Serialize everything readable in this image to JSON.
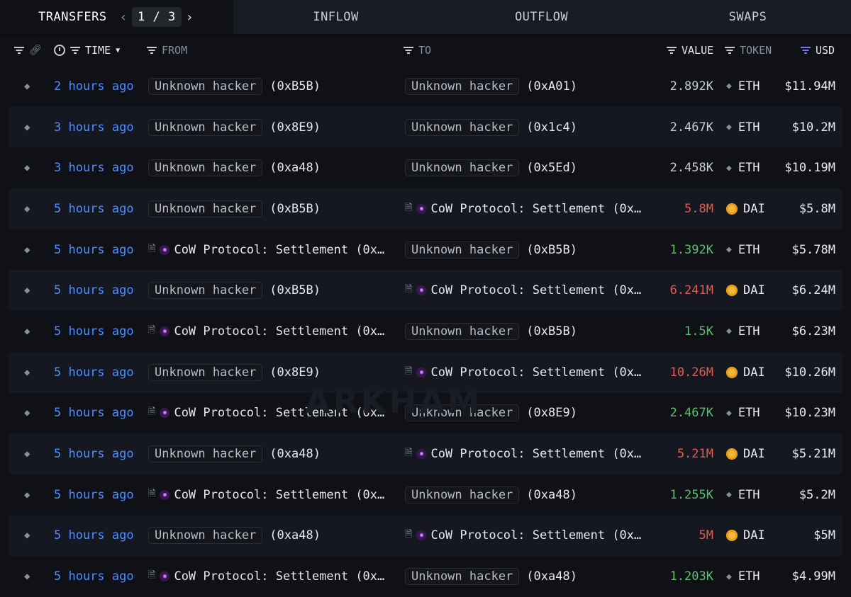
{
  "tabs": {
    "transfers": "TRANSFERS",
    "page_current": "1",
    "page_sep": "/",
    "page_total": "3",
    "inflow": "INFLOW",
    "outflow": "OUTFLOW",
    "swaps": "SWAPS"
  },
  "columns": {
    "time": "TIME",
    "from": "FROM",
    "to": "TO",
    "value": "VALUE",
    "token": "TOKEN",
    "usd": "USD"
  },
  "watermark": "ARKHAM",
  "colors": {
    "time_link": "#4d8dff",
    "value_out": "#e05a4f",
    "value_in": "#5fbf6a",
    "accent_filter": "#7b72ff"
  },
  "rows": [
    {
      "time": "2 hours ago",
      "from": {
        "kind": "hacker",
        "label": "Unknown hacker",
        "addr": "(0xB5B)"
      },
      "to": {
        "kind": "hacker",
        "label": "Unknown hacker",
        "addr": "(0xA01)"
      },
      "value": "2.892K",
      "value_color": "white",
      "token": "ETH",
      "usd": "$11.94M"
    },
    {
      "time": "3 hours ago",
      "from": {
        "kind": "hacker",
        "label": "Unknown hacker",
        "addr": "(0x8E9)"
      },
      "to": {
        "kind": "hacker",
        "label": "Unknown hacker",
        "addr": "(0x1c4)"
      },
      "value": "2.467K",
      "value_color": "white",
      "token": "ETH",
      "usd": "$10.2M"
    },
    {
      "time": "3 hours ago",
      "from": {
        "kind": "hacker",
        "label": "Unknown hacker",
        "addr": "(0xa48)"
      },
      "to": {
        "kind": "hacker",
        "label": "Unknown hacker",
        "addr": "(0x5Ed)"
      },
      "value": "2.458K",
      "value_color": "white",
      "token": "ETH",
      "usd": "$10.19M"
    },
    {
      "time": "5 hours ago",
      "from": {
        "kind": "hacker",
        "label": "Unknown hacker",
        "addr": "(0xB5B)"
      },
      "to": {
        "kind": "cow",
        "label": "CoW Protocol: Settlement (0x…"
      },
      "value": "5.8M",
      "value_color": "red",
      "token": "DAI",
      "usd": "$5.8M"
    },
    {
      "time": "5 hours ago",
      "from": {
        "kind": "cow",
        "label": "CoW Protocol: Settlement (0x…"
      },
      "to": {
        "kind": "hacker",
        "label": "Unknown hacker",
        "addr": "(0xB5B)"
      },
      "value": "1.392K",
      "value_color": "green",
      "token": "ETH",
      "usd": "$5.78M"
    },
    {
      "time": "5 hours ago",
      "from": {
        "kind": "hacker",
        "label": "Unknown hacker",
        "addr": "(0xB5B)"
      },
      "to": {
        "kind": "cow",
        "label": "CoW Protocol: Settlement (0x…"
      },
      "value": "6.241M",
      "value_color": "red",
      "token": "DAI",
      "usd": "$6.24M"
    },
    {
      "time": "5 hours ago",
      "from": {
        "kind": "cow",
        "label": "CoW Protocol: Settlement (0x…"
      },
      "to": {
        "kind": "hacker",
        "label": "Unknown hacker",
        "addr": "(0xB5B)"
      },
      "value": "1.5K",
      "value_color": "green",
      "token": "ETH",
      "usd": "$6.23M"
    },
    {
      "time": "5 hours ago",
      "from": {
        "kind": "hacker",
        "label": "Unknown hacker",
        "addr": "(0x8E9)"
      },
      "to": {
        "kind": "cow",
        "label": "CoW Protocol: Settlement (0x…"
      },
      "value": "10.26M",
      "value_color": "red",
      "token": "DAI",
      "usd": "$10.26M"
    },
    {
      "time": "5 hours ago",
      "from": {
        "kind": "cow",
        "label": "CoW Protocol: Settlement (0x…"
      },
      "to": {
        "kind": "hacker",
        "label": "Unknown hacker",
        "addr": "(0x8E9)"
      },
      "value": "2.467K",
      "value_color": "green",
      "token": "ETH",
      "usd": "$10.23M"
    },
    {
      "time": "5 hours ago",
      "from": {
        "kind": "hacker",
        "label": "Unknown hacker",
        "addr": "(0xa48)"
      },
      "to": {
        "kind": "cow",
        "label": "CoW Protocol: Settlement (0x…"
      },
      "value": "5.21M",
      "value_color": "red",
      "token": "DAI",
      "usd": "$5.21M"
    },
    {
      "time": "5 hours ago",
      "from": {
        "kind": "cow",
        "label": "CoW Protocol: Settlement (0x…"
      },
      "to": {
        "kind": "hacker",
        "label": "Unknown hacker",
        "addr": "(0xa48)"
      },
      "value": "1.255K",
      "value_color": "green",
      "token": "ETH",
      "usd": "$5.2M"
    },
    {
      "time": "5 hours ago",
      "from": {
        "kind": "hacker",
        "label": "Unknown hacker",
        "addr": "(0xa48)"
      },
      "to": {
        "kind": "cow",
        "label": "CoW Protocol: Settlement (0x…"
      },
      "value": "5M",
      "value_color": "red",
      "token": "DAI",
      "usd": "$5M"
    },
    {
      "time": "5 hours ago",
      "from": {
        "kind": "cow",
        "label": "CoW Protocol: Settlement (0x…"
      },
      "to": {
        "kind": "hacker",
        "label": "Unknown hacker",
        "addr": "(0xa48)"
      },
      "value": "1.203K",
      "value_color": "green",
      "token": "ETH",
      "usd": "$4.99M"
    }
  ]
}
